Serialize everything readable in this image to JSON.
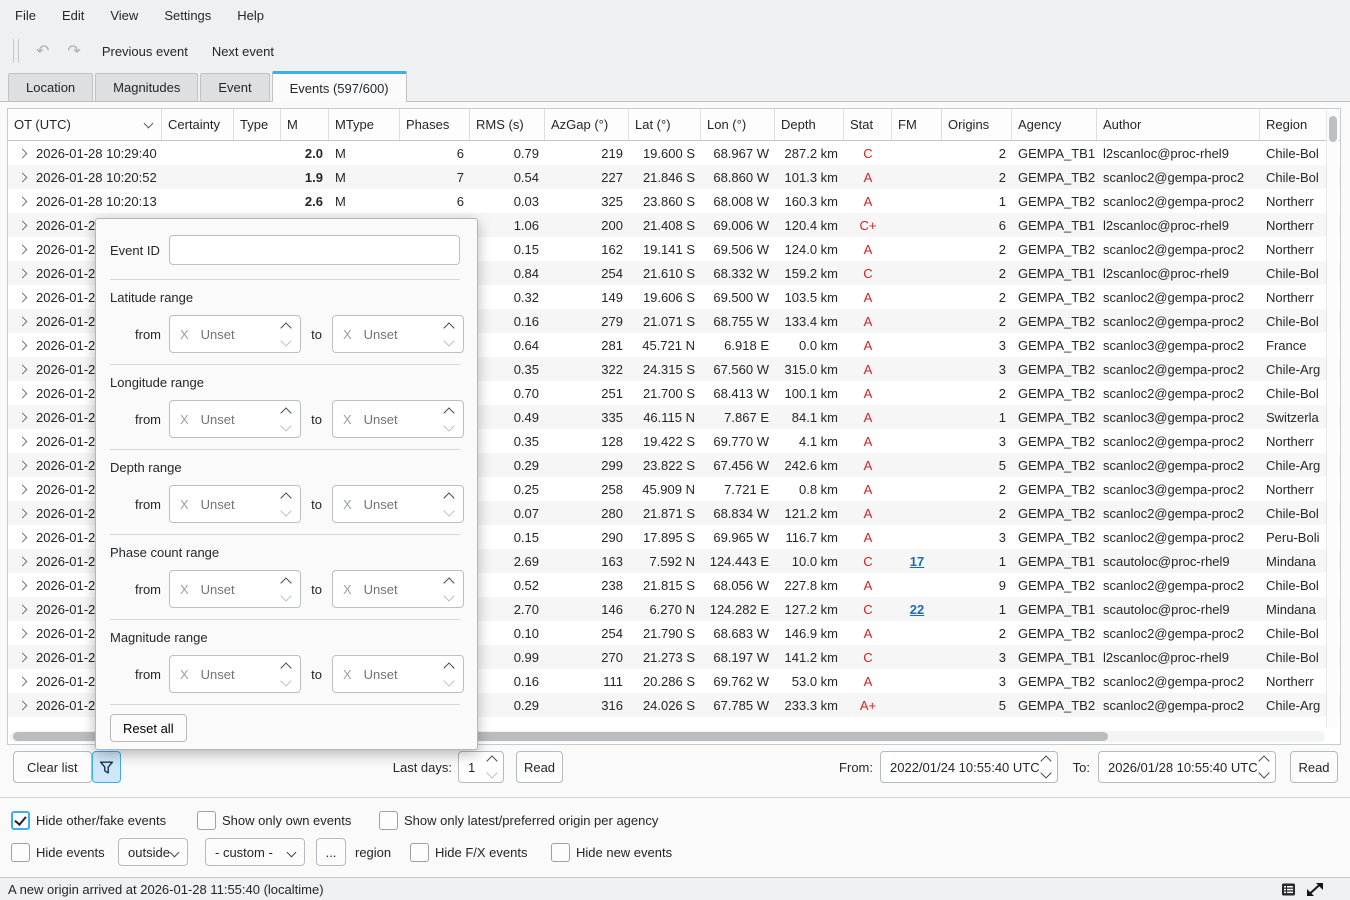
{
  "window": {
    "menu": [
      "File",
      "Edit",
      "View",
      "Settings",
      "Help"
    ],
    "toolbar": {
      "undo_icon": "↶",
      "redo_icon": "↷",
      "previous": "Previous event",
      "next": "Next event"
    }
  },
  "tabs": [
    {
      "label": "Location",
      "active": false
    },
    {
      "label": "Magnitudes",
      "active": false
    },
    {
      "label": "Event",
      "active": false
    },
    {
      "label": "Events (597/600)",
      "active": true
    }
  ],
  "table": {
    "columns": [
      "OT (UTC)",
      "Certainty",
      "Type",
      "M",
      "MType",
      "Phases",
      "RMS (s)",
      "AzGap (°)",
      "Lat (°)",
      "Lon (°)",
      "Depth",
      "Stat",
      "FM",
      "Origins",
      "Agency",
      "Author",
      "Region"
    ],
    "rows": [
      {
        "ot": "2026-01-28 10:29:40",
        "certainty": "",
        "type": "",
        "m": "2.0",
        "mtype": "M",
        "phases": "6",
        "rms": "0.79",
        "azgap": "219",
        "lat": "19.600 S",
        "lon": "68.967 W",
        "depth": "287.2 km",
        "stat": "C",
        "fm": "",
        "origins": "2",
        "agency": "GEMPA_TB1",
        "author": "l2scanloc@proc-rhel9",
        "region": "Chile-Bol"
      },
      {
        "ot": "2026-01-28 10:20:52",
        "certainty": "",
        "type": "",
        "m": "1.9",
        "mtype": "M",
        "phases": "7",
        "rms": "0.54",
        "azgap": "227",
        "lat": "21.846 S",
        "lon": "68.860 W",
        "depth": "101.3 km",
        "stat": "A",
        "fm": "",
        "origins": "2",
        "agency": "GEMPA_TB2",
        "author": "scanloc2@gempa-proc2",
        "region": "Chile-Bol"
      },
      {
        "ot": "2026-01-28 10:20:13",
        "certainty": "",
        "type": "",
        "m": "2.6",
        "mtype": "M",
        "phases": "6",
        "rms": "0.03",
        "azgap": "325",
        "lat": "23.860 S",
        "lon": "68.008 W",
        "depth": "160.3 km",
        "stat": "A",
        "fm": "",
        "origins": "1",
        "agency": "GEMPA_TB2",
        "author": "scanloc2@gempa-proc2",
        "region": "Northerr"
      },
      {
        "ot": "2026-01-2",
        "certainty": "",
        "type": "",
        "m": "",
        "mtype": "",
        "phases": "",
        "rms": "1.06",
        "azgap": "200",
        "lat": "21.408 S",
        "lon": "69.006 W",
        "depth": "120.4 km",
        "stat": "C+",
        "fm": "",
        "origins": "6",
        "agency": "GEMPA_TB1",
        "author": "l2scanloc@proc-rhel9",
        "region": "Northerr"
      },
      {
        "ot": "2026-01-2",
        "certainty": "",
        "type": "",
        "m": "",
        "mtype": "",
        "phases": "",
        "rms": "0.15",
        "azgap": "162",
        "lat": "19.141 S",
        "lon": "69.506 W",
        "depth": "124.0 km",
        "stat": "A",
        "fm": "",
        "origins": "2",
        "agency": "GEMPA_TB2",
        "author": "scanloc2@gempa-proc2",
        "region": "Northerr"
      },
      {
        "ot": "2026-01-2",
        "certainty": "",
        "type": "",
        "m": "",
        "mtype": "",
        "phases": "",
        "rms": "0.84",
        "azgap": "254",
        "lat": "21.610 S",
        "lon": "68.332 W",
        "depth": "159.2 km",
        "stat": "C",
        "fm": "",
        "origins": "2",
        "agency": "GEMPA_TB1",
        "author": "l2scanloc@proc-rhel9",
        "region": "Chile-Bol"
      },
      {
        "ot": "2026-01-2",
        "certainty": "",
        "type": "",
        "m": "",
        "mtype": "",
        "phases": "",
        "rms": "0.32",
        "azgap": "149",
        "lat": "19.606 S",
        "lon": "69.500 W",
        "depth": "103.5 km",
        "stat": "A",
        "fm": "",
        "origins": "2",
        "agency": "GEMPA_TB2",
        "author": "scanloc2@gempa-proc2",
        "region": "Northerr"
      },
      {
        "ot": "2026-01-2",
        "certainty": "",
        "type": "",
        "m": "",
        "mtype": "",
        "phases": "",
        "rms": "0.16",
        "azgap": "279",
        "lat": "21.071 S",
        "lon": "68.755 W",
        "depth": "133.4 km",
        "stat": "A",
        "fm": "",
        "origins": "2",
        "agency": "GEMPA_TB2",
        "author": "scanloc2@gempa-proc2",
        "region": "Chile-Bol"
      },
      {
        "ot": "2026-01-2",
        "certainty": "",
        "type": "",
        "m": "",
        "mtype": "",
        "phases": "",
        "rms": "0.64",
        "azgap": "281",
        "lat": "45.721 N",
        "lon": "6.918 E",
        "depth": "0.0 km",
        "stat": "A",
        "fm": "",
        "origins": "3",
        "agency": "GEMPA_TB2",
        "author": "scanloc3@gempa-proc2",
        "region": "France"
      },
      {
        "ot": "2026-01-2",
        "certainty": "",
        "type": "",
        "m": "",
        "mtype": "",
        "phases": "",
        "rms": "0.35",
        "azgap": "322",
        "lat": "24.315 S",
        "lon": "67.560 W",
        "depth": "315.0 km",
        "stat": "A",
        "fm": "",
        "origins": "3",
        "agency": "GEMPA_TB2",
        "author": "scanloc2@gempa-proc2",
        "region": "Chile-Arg"
      },
      {
        "ot": "2026-01-2",
        "certainty": "",
        "type": "",
        "m": "",
        "mtype": "",
        "phases": "",
        "rms": "0.70",
        "azgap": "251",
        "lat": "21.700 S",
        "lon": "68.413 W",
        "depth": "100.1 km",
        "stat": "A",
        "fm": "",
        "origins": "2",
        "agency": "GEMPA_TB2",
        "author": "scanloc2@gempa-proc2",
        "region": "Chile-Bol"
      },
      {
        "ot": "2026-01-2",
        "certainty": "",
        "type": "",
        "m": "",
        "mtype": "",
        "phases": "",
        "rms": "0.49",
        "azgap": "335",
        "lat": "46.115 N",
        "lon": "7.867 E",
        "depth": "84.1 km",
        "stat": "A",
        "fm": "",
        "origins": "1",
        "agency": "GEMPA_TB2",
        "author": "scanloc3@gempa-proc2",
        "region": "Switzerla"
      },
      {
        "ot": "2026-01-2",
        "certainty": "",
        "type": "",
        "m": "",
        "mtype": "",
        "phases": "",
        "rms": "0.35",
        "azgap": "128",
        "lat": "19.422 S",
        "lon": "69.770 W",
        "depth": "4.1 km",
        "stat": "A",
        "fm": "",
        "origins": "3",
        "agency": "GEMPA_TB2",
        "author": "scanloc2@gempa-proc2",
        "region": "Northerr"
      },
      {
        "ot": "2026-01-2",
        "certainty": "",
        "type": "",
        "m": "",
        "mtype": "",
        "phases": "",
        "rms": "0.29",
        "azgap": "299",
        "lat": "23.822 S",
        "lon": "67.456 W",
        "depth": "242.6 km",
        "stat": "A",
        "fm": "",
        "origins": "5",
        "agency": "GEMPA_TB2",
        "author": "scanloc2@gempa-proc2",
        "region": "Chile-Arg"
      },
      {
        "ot": "2026-01-2",
        "certainty": "",
        "type": "",
        "m": "",
        "mtype": "",
        "phases": "",
        "rms": "0.25",
        "azgap": "258",
        "lat": "45.909 N",
        "lon": "7.721 E",
        "depth": "0.8 km",
        "stat": "A",
        "fm": "",
        "origins": "2",
        "agency": "GEMPA_TB2",
        "author": "scanloc3@gempa-proc2",
        "region": "Northerr"
      },
      {
        "ot": "2026-01-2",
        "certainty": "",
        "type": "",
        "m": "",
        "mtype": "",
        "phases": "",
        "rms": "0.07",
        "azgap": "280",
        "lat": "21.871 S",
        "lon": "68.834 W",
        "depth": "121.2 km",
        "stat": "A",
        "fm": "",
        "origins": "2",
        "agency": "GEMPA_TB2",
        "author": "scanloc2@gempa-proc2",
        "region": "Chile-Bol"
      },
      {
        "ot": "2026-01-2",
        "certainty": "",
        "type": "",
        "m": "",
        "mtype": "",
        "phases": "",
        "rms": "0.15",
        "azgap": "290",
        "lat": "17.895 S",
        "lon": "69.965 W",
        "depth": "116.7 km",
        "stat": "A",
        "fm": "",
        "origins": "3",
        "agency": "GEMPA_TB2",
        "author": "scanloc2@gempa-proc2",
        "region": "Peru-Boli"
      },
      {
        "ot": "2026-01-2",
        "certainty": "",
        "type": "",
        "m": "",
        "mtype": "",
        "phases": "",
        "rms": "2.69",
        "azgap": "163",
        "lat": "7.592 N",
        "lon": "124.443 E",
        "depth": "10.0 km",
        "stat": "C",
        "fm": "17",
        "origins": "1",
        "agency": "GEMPA_TB1",
        "author": "scautoloc@proc-rhel9",
        "region": "Mindana"
      },
      {
        "ot": "2026-01-2",
        "certainty": "",
        "type": "",
        "m": "",
        "mtype": "",
        "phases": "",
        "rms": "0.52",
        "azgap": "238",
        "lat": "21.815 S",
        "lon": "68.056 W",
        "depth": "227.8 km",
        "stat": "A",
        "fm": "",
        "origins": "9",
        "agency": "GEMPA_TB2",
        "author": "scanloc2@gempa-proc2",
        "region": "Chile-Bol"
      },
      {
        "ot": "2026-01-2",
        "certainty": "",
        "type": "",
        "m": "",
        "mtype": "",
        "phases": "",
        "rms": "2.70",
        "azgap": "146",
        "lat": "6.270 N",
        "lon": "124.282 E",
        "depth": "127.2 km",
        "stat": "C",
        "fm": "22",
        "origins": "1",
        "agency": "GEMPA_TB1",
        "author": "scautoloc@proc-rhel9",
        "region": "Mindana"
      },
      {
        "ot": "2026-01-2",
        "certainty": "",
        "type": "",
        "m": "",
        "mtype": "",
        "phases": "",
        "rms": "0.10",
        "azgap": "254",
        "lat": "21.790 S",
        "lon": "68.683 W",
        "depth": "146.9 km",
        "stat": "A",
        "fm": "",
        "origins": "2",
        "agency": "GEMPA_TB2",
        "author": "scanloc2@gempa-proc2",
        "region": "Chile-Bol"
      },
      {
        "ot": "2026-01-2",
        "certainty": "",
        "type": "",
        "m": "",
        "mtype": "",
        "phases": "",
        "rms": "0.99",
        "azgap": "270",
        "lat": "21.273 S",
        "lon": "68.197 W",
        "depth": "141.2 km",
        "stat": "C",
        "fm": "",
        "origins": "3",
        "agency": "GEMPA_TB1",
        "author": "l2scanloc@proc-rhel9",
        "region": "Chile-Bol"
      },
      {
        "ot": "2026-01-2",
        "certainty": "",
        "type": "",
        "m": "",
        "mtype": "",
        "phases": "",
        "rms": "0.16",
        "azgap": "111",
        "lat": "20.286 S",
        "lon": "69.762 W",
        "depth": "53.0 km",
        "stat": "A",
        "fm": "",
        "origins": "3",
        "agency": "GEMPA_TB2",
        "author": "scanloc2@gempa-proc2",
        "region": "Northerr"
      },
      {
        "ot": "2026-01-2",
        "certainty": "",
        "type": "",
        "m": "",
        "mtype": "",
        "phases": "",
        "rms": "0.29",
        "azgap": "316",
        "lat": "24.026 S",
        "lon": "67.785 W",
        "depth": "233.3 km",
        "stat": "A+",
        "fm": "",
        "origins": "5",
        "agency": "GEMPA_TB2",
        "author": "scanloc2@gempa-proc2",
        "region": "Chile-Arg"
      }
    ]
  },
  "filter_popup": {
    "event_id_label": "Event ID",
    "event_id_value": "",
    "sections": [
      "Latitude range",
      "Longitude range",
      "Depth range",
      "Phase count range",
      "Magnitude range"
    ],
    "from_label": "from",
    "to_label": "to",
    "unset_text": "Unset",
    "clear_glyph": "X",
    "reset_label": "Reset all"
  },
  "controls": {
    "clear_list": "Clear list",
    "last_days_label": "Last days:",
    "last_days_value": "1",
    "read_label": "Read",
    "from_label": "From:",
    "from_value": "2022/01/24 10:55:40 UTC",
    "to_label": "To:",
    "to_value": "2026/01/28 10:55:40 UTC",
    "read2_label": "Read"
  },
  "filters_row1": [
    {
      "label": "Hide other/fake events",
      "checked": true
    },
    {
      "label": "Show only own events",
      "checked": false
    },
    {
      "label": "Show only latest/preferred origin per agency",
      "checked": false
    }
  ],
  "filters_row2": {
    "hide_events_label": "Hide events",
    "hide_events_checked": false,
    "scope_value": "outside",
    "region_value": "- custom -",
    "more_button": "...",
    "region_label": "region",
    "hide_fx_label": "Hide F/X events",
    "hide_fx_checked": false,
    "hide_new_label": "Hide new events",
    "hide_new_checked": false
  },
  "statusbar": {
    "message": "A new origin arrived at 2026-01-28 11:55:40 (localtime)"
  },
  "colors": {
    "accent": "#3daee9",
    "stat_red": "#dc2020",
    "fm_link": "#1f6bb0"
  }
}
